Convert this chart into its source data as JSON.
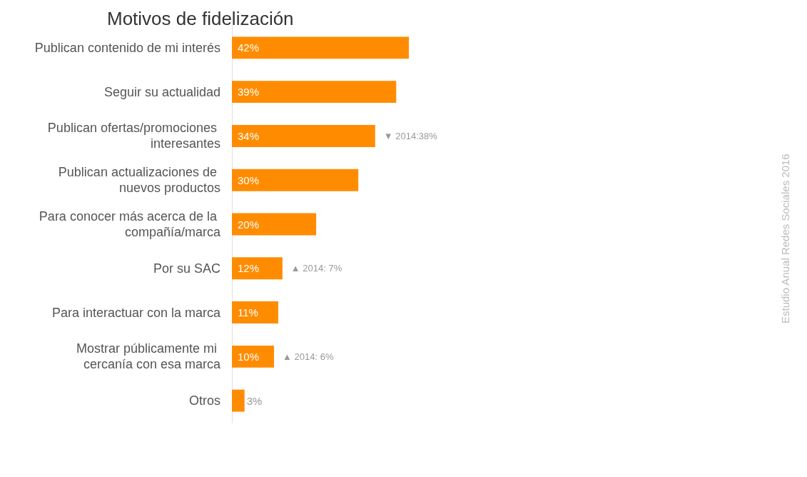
{
  "chart_data": {
    "type": "bar",
    "orientation": "horizontal",
    "title": "Motivos de fidelización",
    "categories": [
      "Publican contenido de mi interés",
      "Seguir su actualidad",
      "Publican ofertas/promociones interesantes",
      "Publican actualizaciones de nuevos productos",
      "Para conocer más acerca de la compañía/marca",
      "Por su SAC",
      "Para interactuar con la marca",
      "Mostrar públicamente mi cercanía con esa marca",
      "Otros"
    ],
    "values": [
      42,
      39,
      34,
      30,
      20,
      12,
      11,
      10,
      3
    ],
    "value_labels": [
      "42%",
      "39%",
      "34%",
      "30%",
      "20%",
      "12%",
      "11%",
      "10%",
      "3%"
    ],
    "color": "#ff8c00",
    "tick_labels": "y",
    "grid": false,
    "annotations": [
      {
        "text": "▼ 2014:38%",
        "x": 34,
        "y": "Publican ofertas/promociones interesantes"
      },
      {
        "text": "▲ 2014: 7%",
        "x": 12,
        "y": "Por su SAC"
      },
      {
        "text": "▲ 2014: 6%",
        "x": 10,
        "y": "Mostrar públicamente mi cercanía con esa marca"
      },
      "Estudio Anual Redes Sociales 2016"
    ]
  }
}
